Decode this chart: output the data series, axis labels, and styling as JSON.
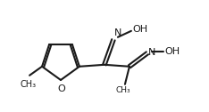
{
  "bg_color": "#ffffff",
  "line_color": "#1a1a1a",
  "line_width": 1.5,
  "font_size": 8,
  "figsize": [
    2.34,
    1.26
  ],
  "dpi": 100,
  "atoms": {
    "O_label": "O",
    "N_label": "N",
    "OH_label": "OH"
  }
}
